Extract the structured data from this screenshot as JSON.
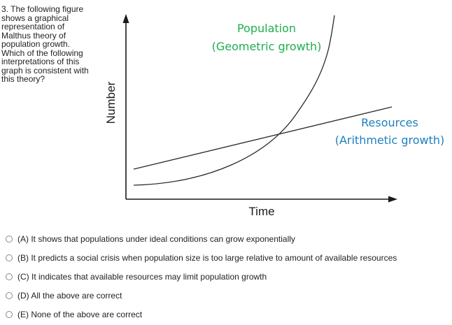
{
  "question": {
    "text": "3. The following figure\nshows a graphical\nrepresentation of\nMalthus theory of\npopulation growth.\nWhich of the following\ninterpretations of this\ngraph is consistent with\nthis theory?"
  },
  "figure": {
    "y_axis_label": "Number",
    "x_axis_label": "Time",
    "population_label": [
      "Population",
      "(Geometric growth)"
    ],
    "resources_label": [
      "Resources",
      "(Arithmetic growth)"
    ],
    "colors": {
      "population_label": "#1fae4e",
      "resources_label": "#1f7fbf",
      "axes": "#1a1a1a",
      "curves": "#2a2a2a"
    }
  },
  "options": [
    {
      "label": "(A) It shows that populations under ideal conditions can grow exponentially"
    },
    {
      "label": "(B) It predicts a social crisis when population size is too large relative to amount of available resources"
    },
    {
      "label": "(C) It indicates that available resources may limit population growth"
    },
    {
      "label": "(D) All the above are correct"
    },
    {
      "label": "(E) None of the above are correct"
    }
  ]
}
